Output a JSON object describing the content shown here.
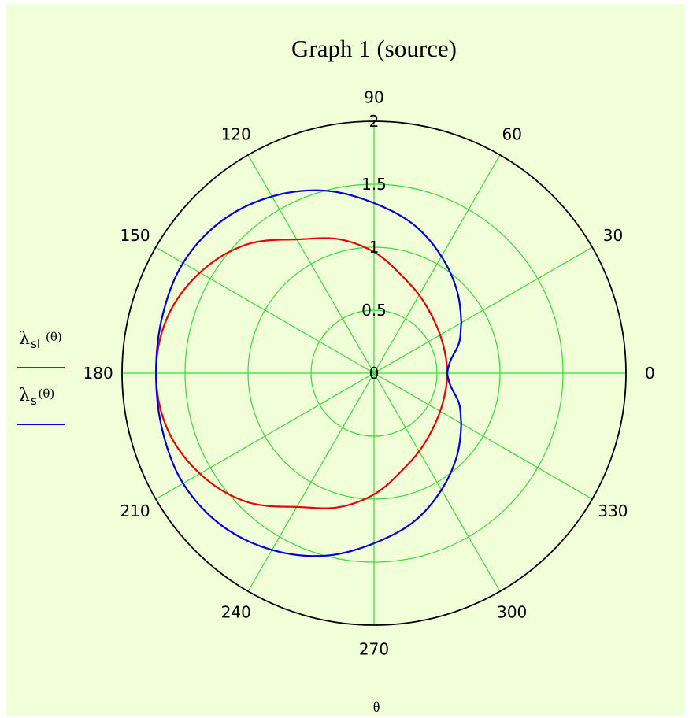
{
  "chart_data": {
    "type": "polar-line",
    "title": "Graph 1 (source)",
    "xlabel": "θ",
    "angular_unit": "degrees",
    "angular_ticks": [
      "0",
      "30",
      "60",
      "90",
      "120",
      "150",
      "180",
      "210",
      "240",
      "270",
      "300",
      "330"
    ],
    "radial_ticks": [
      "0",
      "0.5",
      "1",
      "1.5",
      "2"
    ],
    "rlim": [
      0,
      2
    ],
    "grid": true,
    "legend_position": "left",
    "colors": {
      "background": "#f0ffd8",
      "grid": "#33dd33",
      "outer_circle": "#000000"
    },
    "series": [
      {
        "name": "λ",
        "sub": "sl",
        "arg": "(θ)",
        "color": "#ee0000",
        "theta_deg": [
          0,
          15,
          30,
          45,
          60,
          75,
          90,
          105,
          120,
          135,
          150,
          165,
          180,
          195,
          210,
          225,
          240,
          255,
          270,
          285,
          300,
          315,
          330,
          345,
          360
        ],
        "r": [
          0.582,
          0.585,
          0.606,
          0.647,
          0.716,
          0.812,
          0.962,
          1.102,
          1.226,
          1.441,
          1.596,
          1.7,
          1.73,
          1.7,
          1.596,
          1.441,
          1.226,
          1.102,
          0.962,
          0.812,
          0.716,
          0.647,
          0.606,
          0.585,
          0.582
        ]
      },
      {
        "name": "λ",
        "sub": "s",
        "arg": "(θ)",
        "color": "#0000dd",
        "theta_deg": [
          0,
          10,
          20,
          30,
          45,
          60,
          75,
          90,
          105,
          120,
          135,
          150,
          165,
          180,
          195,
          210,
          225,
          240,
          255,
          270,
          285,
          300,
          315,
          330,
          340,
          350,
          360
        ],
        "r": [
          0.58,
          0.62,
          0.72,
          0.8,
          0.93,
          1.07,
          1.22,
          1.35,
          1.5,
          1.62,
          1.71,
          1.75,
          1.74,
          1.73,
          1.74,
          1.75,
          1.71,
          1.62,
          1.5,
          1.35,
          1.22,
          1.07,
          0.93,
          0.8,
          0.72,
          0.62,
          0.58
        ]
      }
    ]
  }
}
